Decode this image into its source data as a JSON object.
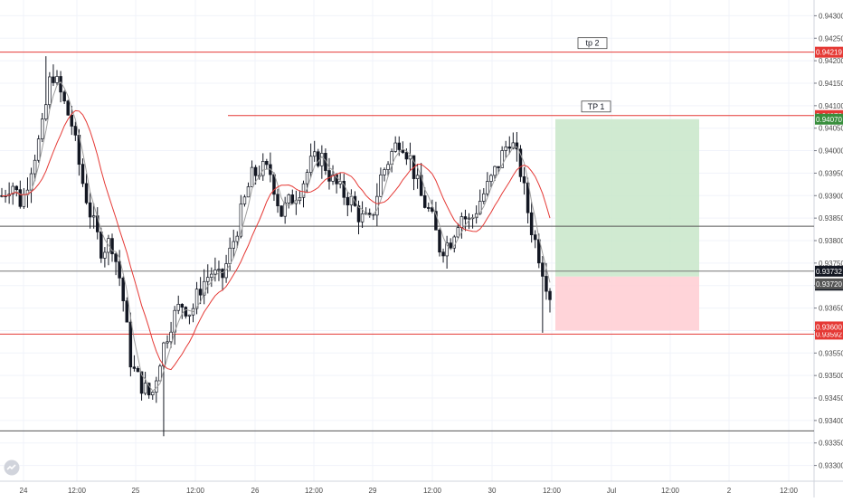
{
  "chart_data": {
    "type": "candlestick",
    "y_ticks": [
      "0.94300",
      "0.94250",
      "0.94200",
      "0.94150",
      "0.94100",
      "0.94050",
      "0.94000",
      "0.93950",
      "0.93900",
      "0.93850",
      "0.93800",
      "0.93750",
      "0.93700",
      "0.93650",
      "0.93600",
      "0.93550",
      "0.93500",
      "0.93450",
      "0.93400",
      "0.93350",
      "0.93300"
    ],
    "x_ticks": [
      "24",
      "12:00",
      "25",
      "12:00",
      "26",
      "12:00",
      "29",
      "12:00",
      "30",
      "12:00",
      "Jul",
      "12:00",
      "2",
      "12:00"
    ],
    "ylim": [
      0.93265,
      0.94335
    ],
    "grid": true,
    "ma_fast_period_note": "",
    "horizontal_lines": [
      {
        "value": 0.94219,
        "color": "#e53935",
        "label": "tp 2",
        "tag": "0.94219",
        "tag_color": "#e53935"
      },
      {
        "value": 0.94078,
        "color": "#e53935",
        "label": "TP 1",
        "tag": "0.94078",
        "tag_color": "#e53935"
      },
      {
        "value": 0.93832,
        "color": "#555555"
      },
      {
        "value": 0.93732,
        "color": "#777777"
      },
      {
        "value": 0.93592,
        "color": "#e53935",
        "tag": "0.93592",
        "tag_color": "#e53935"
      },
      {
        "value": 0.93377,
        "color": "#555555"
      }
    ],
    "price_tags": [
      {
        "value": 0.9407,
        "text": "0.94070",
        "color": "#388e3c"
      },
      {
        "value": 0.93732,
        "text": "0.93732",
        "color": "#131722"
      },
      {
        "value": 0.93705,
        "text": "17:06",
        "color": "#131722"
      },
      {
        "value": 0.9372,
        "text": "0.93720",
        "color": "#555555"
      },
      {
        "value": 0.936,
        "text": "0.93600",
        "color": "#e53935"
      }
    ],
    "position": {
      "entry": 0.9372,
      "target": 0.9407,
      "stop": 0.936,
      "profit_color": "#c8e6c9",
      "loss_color": "#ffcdd2"
    },
    "ohlc_anchors": [
      0.939,
      0.9393,
      0.9388,
      0.9397,
      0.9404,
      0.9418,
      0.9412,
      0.9406,
      0.9394,
      0.9385,
      0.9378,
      0.938,
      0.937,
      0.9352,
      0.9348,
      0.9345,
      0.9355,
      0.9362,
      0.9366,
      0.9364,
      0.937,
      0.9373,
      0.9371,
      0.9378,
      0.9386,
      0.9394,
      0.9396,
      0.9395,
      0.9386,
      0.9389,
      0.9392,
      0.9397,
      0.9399,
      0.9394,
      0.9391,
      0.9389,
      0.9385,
      0.9384,
      0.9394,
      0.9399,
      0.9403,
      0.9398,
      0.939,
      0.9386,
      0.9378,
      0.938,
      0.9386,
      0.9384,
      0.9389,
      0.9393,
      0.9398,
      0.9403,
      0.9396,
      0.9384,
      0.9376,
      0.9368
    ],
    "colors": {
      "up": "#131722",
      "down": "#131722",
      "ma_fast": "#9e9e9e",
      "ma_slow": "#e53935"
    }
  },
  "labels": {
    "tp2": "tp 2",
    "tp1": "TP 1"
  },
  "logo": {
    "icon": "tradingview-logo-icon"
  }
}
